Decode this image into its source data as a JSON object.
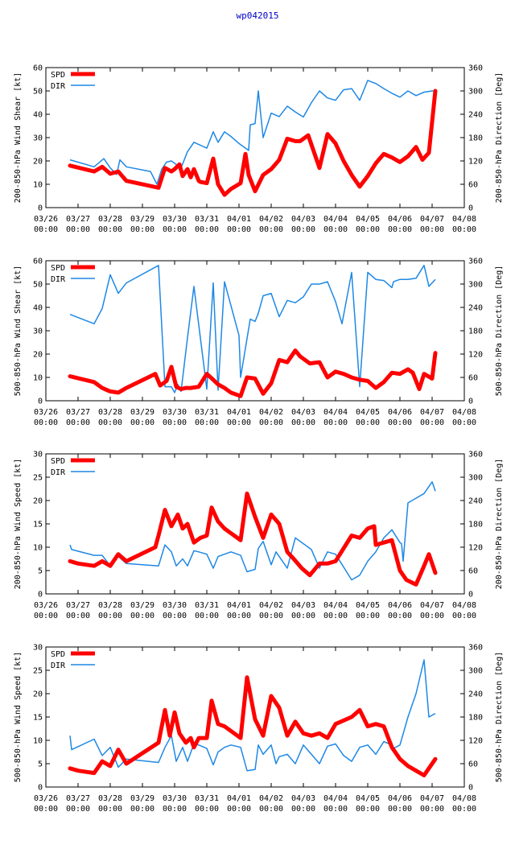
{
  "title": "wp042015",
  "legend": {
    "spd": "SPD",
    "dir": "DIR"
  },
  "colors": {
    "spd": "#ff0000",
    "dir": "#1e88e5",
    "title": "#0000cc"
  },
  "x_tick_labels": [
    [
      "03/26",
      "00:00"
    ],
    [
      "03/27",
      "00:00"
    ],
    [
      "03/28",
      "00:00"
    ],
    [
      "03/29",
      "00:00"
    ],
    [
      "03/30",
      "00:00"
    ],
    [
      "03/31",
      "00:00"
    ],
    [
      "04/01",
      "00:00"
    ],
    [
      "04/02",
      "00:00"
    ],
    [
      "04/03",
      "00:00"
    ],
    [
      "04/04",
      "00:00"
    ],
    [
      "04/05",
      "00:00"
    ],
    [
      "04/06",
      "00:00"
    ],
    [
      "04/07",
      "00:00"
    ],
    [
      "04/08",
      "00:00"
    ]
  ],
  "chart_data": [
    {
      "type": "line",
      "ylabel": "200-850-hPa Wind Shear [kt]",
      "y2label": "200-850-hPa Direction [Deg]",
      "xlim": [
        0,
        13
      ],
      "ylim": [
        0,
        60
      ],
      "yticks": [
        0,
        10,
        20,
        30,
        40,
        50,
        60
      ],
      "y2lim": [
        0,
        360
      ],
      "y2ticks": [
        0,
        60,
        120,
        180,
        240,
        300,
        360
      ],
      "series": [
        {
          "name": "SPD",
          "axis": "left",
          "x": [
            0.75,
            1.5,
            1.75,
            2.0,
            2.25,
            2.5,
            3.5,
            3.7,
            3.9,
            4.0,
            4.15,
            4.25,
            4.4,
            4.5,
            4.6,
            4.75,
            4.8,
            5.0,
            5.2,
            5.35,
            5.55,
            5.75,
            6.05,
            6.2,
            6.3,
            6.5,
            6.75,
            7.0,
            7.25,
            7.5,
            7.75,
            7.9,
            8.15,
            8.5,
            8.75,
            9.0,
            9.25,
            9.5,
            9.75,
            10.0,
            10.25,
            10.5,
            10.75,
            11.0,
            11.25,
            11.5,
            11.7,
            11.9,
            12.1
          ],
          "values": [
            18,
            15.5,
            17.5,
            14.5,
            15.5,
            11.5,
            8.5,
            17,
            15.5,
            16.5,
            18.5,
            13.5,
            16.5,
            13,
            16.5,
            11.5,
            11,
            10.5,
            21,
            10,
            5.5,
            8,
            10.5,
            23,
            14,
            7,
            14,
            16.5,
            20.5,
            29.5,
            28.5,
            28.5,
            31,
            17,
            31.5,
            27.5,
            20,
            14,
            9,
            13.5,
            19,
            23,
            21.5,
            19.5,
            22,
            26,
            20.5,
            23.5,
            50
          ]
        },
        {
          "name": "DIR",
          "axis": "right",
          "x": [
            0.75,
            1.5,
            1.8,
            2.0,
            2.2,
            2.3,
            2.5,
            3.25,
            3.45,
            3.6,
            3.75,
            3.9,
            4.2,
            4.4,
            4.6,
            5.0,
            5.2,
            5.35,
            5.55,
            5.75,
            6.0,
            6.05,
            6.3,
            6.35,
            6.5,
            6.6,
            6.75,
            7.0,
            7.25,
            7.5,
            7.75,
            8.0,
            8.25,
            8.5,
            8.75,
            9.0,
            9.25,
            9.5,
            9.75,
            10.0,
            10.25,
            10.5,
            10.75,
            11.0,
            11.25,
            11.5,
            11.75,
            12.0,
            12.1
          ],
          "values": [
            123,
            105,
            126,
            102,
            85,
            123,
            105,
            93,
            60,
            99,
            117,
            120,
            102,
            144,
            168,
            153,
            195,
            168,
            195,
            183,
            165,
            162,
            147,
            213,
            216,
            300,
            180,
            243,
            234,
            261,
            246,
            233,
            270,
            300,
            282,
            276,
            303,
            306,
            276,
            327,
            319,
            306,
            294,
            284,
            300,
            288,
            297,
            300,
            300
          ]
        }
      ]
    },
    {
      "type": "line",
      "ylabel": "500-850-hPa Wind Shear [kt]",
      "y2label": "500-850-hPa Direction [Deg]",
      "xlim": [
        0,
        13
      ],
      "ylim": [
        0,
        60
      ],
      "yticks": [
        0,
        10,
        20,
        30,
        40,
        50,
        60
      ],
      "y2lim": [
        0,
        360
      ],
      "y2ticks": [
        0,
        60,
        120,
        180,
        240,
        300,
        360
      ],
      "series": [
        {
          "name": "SPD",
          "axis": "left",
          "x": [
            0.75,
            1.5,
            1.75,
            2.0,
            2.25,
            2.5,
            3.4,
            3.55,
            3.75,
            3.9,
            4.05,
            4.2,
            4.35,
            4.5,
            4.75,
            5.0,
            5.2,
            5.35,
            5.55,
            5.75,
            6.05,
            6.25,
            6.5,
            6.75,
            7.0,
            7.25,
            7.5,
            7.75,
            7.9,
            8.2,
            8.5,
            8.75,
            9.0,
            9.25,
            9.5,
            9.75,
            10.0,
            10.25,
            10.5,
            10.75,
            11.0,
            11.25,
            11.4,
            11.6,
            11.75,
            12.0,
            12.1
          ],
          "values": [
            10.5,
            8,
            5.5,
            4,
            3.5,
            5.5,
            11.5,
            6.5,
            8.5,
            14.5,
            6,
            5,
            5.5,
            5.5,
            6,
            11.5,
            9,
            7,
            5.5,
            3.5,
            2,
            10,
            9.5,
            3,
            7.5,
            17.5,
            16.5,
            21.5,
            19,
            16,
            16.5,
            10,
            12.5,
            11.5,
            10,
            9,
            8.5,
            5.5,
            8,
            12,
            11.5,
            13.5,
            12,
            5,
            11.5,
            9.5,
            20.5
          ]
        },
        {
          "name": "DIR",
          "axis": "right",
          "x": [
            0.75,
            1.5,
            1.75,
            2.0,
            2.25,
            2.5,
            3.5,
            3.7,
            3.9,
            4.0,
            4.1,
            4.2,
            4.4,
            4.6,
            5.0,
            5.2,
            5.35,
            5.55,
            6.0,
            6.05,
            6.35,
            6.5,
            6.6,
            6.75,
            7.0,
            7.25,
            7.5,
            7.75,
            8.0,
            8.25,
            8.5,
            8.75,
            9.0,
            9.2,
            9.5,
            9.75,
            10.0,
            10.25,
            10.5,
            10.75,
            10.8,
            11.0,
            11.25,
            11.5,
            11.75,
            11.9,
            12.1
          ],
          "values": [
            222,
            198,
            237,
            324,
            276,
            303,
            348,
            36,
            36,
            21,
            42,
            24,
            162,
            294,
            30,
            303,
            27,
            306,
            168,
            60,
            210,
            204,
            225,
            270,
            276,
            216,
            258,
            252,
            267,
            300,
            300,
            306,
            255,
            198,
            330,
            36,
            330,
            312,
            309,
            291,
            306,
            312,
            312,
            315,
            348,
            294,
            312
          ]
        }
      ]
    },
    {
      "type": "line",
      "ylabel": "200-850-hPa Wind Speed [kt]",
      "y2label": "200-850-hPa Direction [Deg]",
      "xlim": [
        0,
        13
      ],
      "ylim": [
        0,
        30
      ],
      "yticks": [
        0,
        5,
        10,
        15,
        20,
        25,
        30
      ],
      "y2lim": [
        0,
        360
      ],
      "y2ticks": [
        0,
        60,
        120,
        180,
        240,
        300,
        360
      ],
      "series": [
        {
          "name": "SPD",
          "axis": "left",
          "x": [
            0.75,
            1.0,
            1.5,
            1.75,
            2.0,
            2.25,
            2.5,
            3.4,
            3.5,
            3.7,
            3.9,
            4.1,
            4.25,
            4.4,
            4.6,
            4.8,
            5.0,
            5.15,
            5.35,
            5.55,
            5.75,
            6.05,
            6.25,
            6.5,
            6.75,
            7.0,
            7.25,
            7.5,
            7.7,
            7.95,
            8.2,
            8.5,
            8.75,
            9.0,
            9.5,
            9.75,
            10.0,
            10.2,
            10.25,
            10.5,
            10.75,
            11.0,
            11.2,
            11.5,
            11.75,
            11.9,
            12.1
          ],
          "values": [
            7,
            6.5,
            6,
            7,
            6,
            8.5,
            7,
            10,
            12.5,
            18,
            14.5,
            17,
            14,
            15,
            11,
            12,
            12.5,
            18.5,
            15.5,
            14,
            13,
            11.5,
            21.5,
            16.5,
            12,
            17,
            15,
            9,
            7.5,
            5.5,
            4,
            6.5,
            6.5,
            7,
            12.5,
            12,
            14,
            14.5,
            10.5,
            11,
            11.5,
            5,
            3,
            2,
            6,
            8.5,
            4.5
          ]
        },
        {
          "name": "DIR",
          "axis": "right",
          "x": [
            0.75,
            0.8,
            1.5,
            1.75,
            2.0,
            2.25,
            2.5,
            3.5,
            3.7,
            3.9,
            4.05,
            4.25,
            4.4,
            4.6,
            4.75,
            5.0,
            5.2,
            5.35,
            5.55,
            5.75,
            6.05,
            6.25,
            6.5,
            6.6,
            6.75,
            7.0,
            7.15,
            7.25,
            7.5,
            7.75,
            8.0,
            8.25,
            8.5,
            8.75,
            9.0,
            9.5,
            9.75,
            10.0,
            10.25,
            10.5,
            10.75,
            11.0,
            11.05,
            11.1,
            11.25,
            11.5,
            11.75,
            12.0,
            12.1
          ],
          "values": [
            126,
            114,
            99,
            99,
            72,
            96,
            78,
            72,
            126,
            108,
            72,
            90,
            72,
            111,
            108,
            102,
            66,
            96,
            102,
            108,
            99,
            57,
            63,
            117,
            135,
            75,
            108,
            96,
            66,
            144,
            129,
            114,
            66,
            108,
            102,
            36,
            48,
            84,
            108,
            144,
            165,
            132,
            129,
            84,
            234,
            246,
            258,
            288,
            264
          ]
        }
      ]
    },
    {
      "type": "line",
      "ylabel": "500-850-hPa Wind Speed [kt]",
      "y2label": "500-850-hPa Direction [Deg]",
      "xlim": [
        0,
        13
      ],
      "ylim": [
        0,
        30
      ],
      "yticks": [
        0,
        5,
        10,
        15,
        20,
        25,
        30
      ],
      "y2lim": [
        0,
        360
      ],
      "y2ticks": [
        0,
        60,
        120,
        180,
        240,
        300,
        360
      ],
      "series": [
        {
          "name": "SPD",
          "axis": "left",
          "x": [
            0.75,
            1.0,
            1.5,
            1.75,
            2.0,
            2.25,
            2.5,
            3.5,
            3.7,
            3.85,
            4.0,
            4.15,
            4.35,
            4.5,
            4.6,
            4.75,
            5.0,
            5.15,
            5.35,
            5.55,
            5.75,
            6.05,
            6.25,
            6.5,
            6.75,
            7.0,
            7.25,
            7.5,
            7.75,
            8.0,
            8.25,
            8.5,
            8.75,
            9.0,
            9.5,
            9.75,
            10.0,
            10.25,
            10.5,
            10.75,
            11.0,
            11.25,
            11.5,
            11.75,
            11.9,
            12.1
          ],
          "values": [
            4,
            3.5,
            3,
            5.5,
            4.5,
            8,
            5,
            9.5,
            16.5,
            11,
            16,
            11.5,
            9.5,
            10.5,
            8.5,
            10.5,
            10.5,
            18.5,
            13.5,
            13,
            12,
            10.5,
            23.5,
            14.5,
            11,
            19.5,
            17,
            11,
            14,
            11.5,
            11,
            11.5,
            10.5,
            13.5,
            15,
            16.5,
            13,
            13.5,
            13,
            8.5,
            6,
            4.5,
            3.5,
            2.5,
            4,
            6
          ]
        },
        {
          "name": "DIR",
          "axis": "right",
          "x": [
            0.75,
            0.8,
            1.5,
            1.75,
            2.0,
            2.25,
            2.5,
            3.5,
            3.7,
            3.9,
            4.05,
            4.25,
            4.4,
            4.6,
            4.75,
            5.0,
            5.2,
            5.35,
            5.55,
            5.75,
            6.05,
            6.25,
            6.5,
            6.6,
            6.75,
            7.0,
            7.15,
            7.25,
            7.5,
            7.75,
            8.0,
            8.25,
            8.5,
            8.75,
            9.0,
            9.25,
            9.5,
            9.75,
            10.0,
            10.25,
            10.5,
            10.75,
            10.8,
            11.0,
            11.25,
            11.5,
            11.75,
            11.9,
            12.1
          ],
          "values": [
            132,
            96,
            123,
            81,
            102,
            51,
            72,
            63,
            102,
            132,
            66,
            102,
            66,
            111,
            108,
            99,
            57,
            90,
            102,
            108,
            102,
            42,
            45,
            108,
            84,
            108,
            60,
            78,
            84,
            60,
            108,
            84,
            60,
            105,
            111,
            81,
            66,
            102,
            108,
            84,
            117,
            108,
            99,
            108,
            180,
            240,
            327,
            180,
            189
          ]
        }
      ]
    }
  ]
}
